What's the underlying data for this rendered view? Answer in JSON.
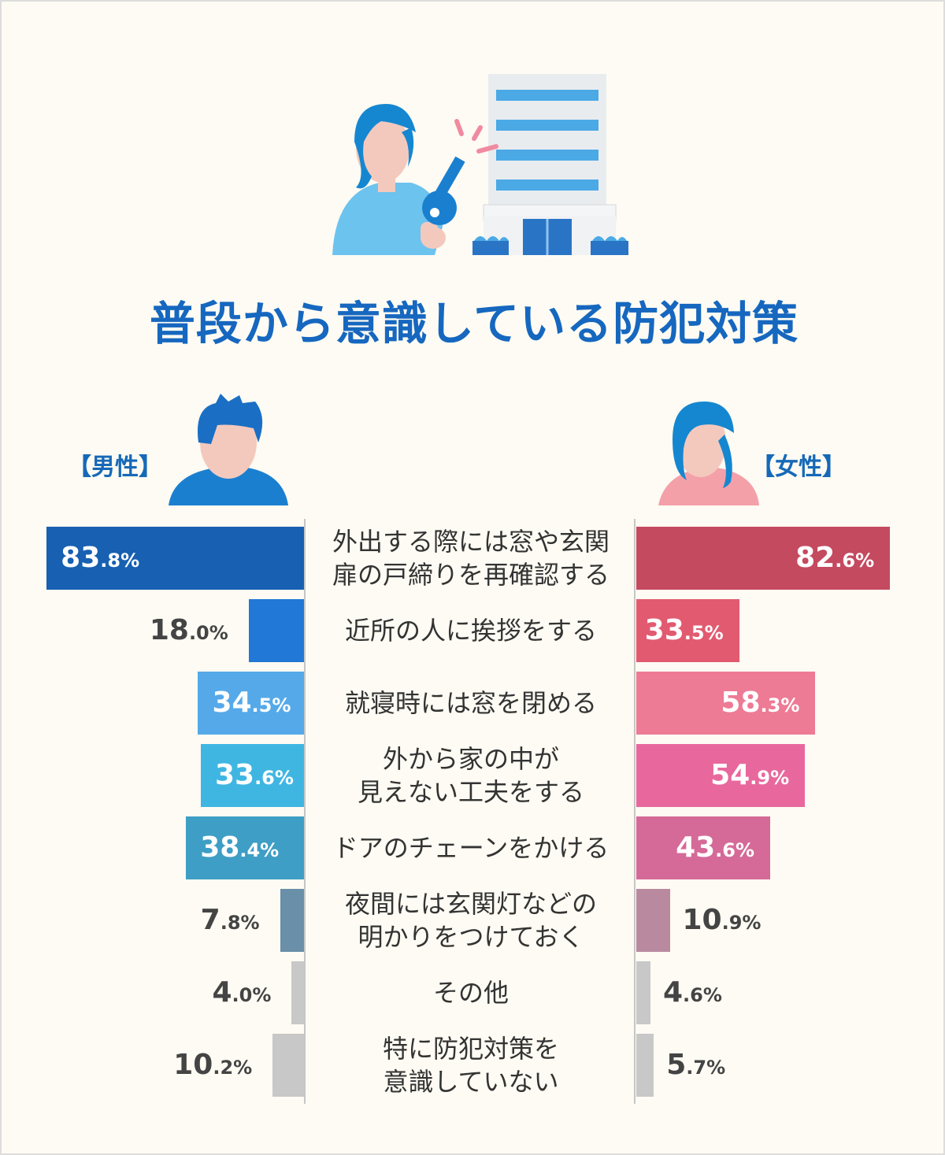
{
  "chart_data": {
    "type": "bar",
    "title": "普段から意識している防犯対策",
    "legend": [
      "【男性】",
      "【女性】"
    ],
    "categories": [
      "外出する際には窓や玄関\n扉の戸締りを再確認する",
      "近所の人に挨拶をする",
      "就寝時には窓を閉める",
      "外から家の中が\n見えない工夫をする",
      "ドアのチェーンをかける",
      "夜間には玄関灯などの\n明かりをつけておく",
      "その他",
      "特に防犯対策を\n意識していない"
    ],
    "series": [
      {
        "name": "【男性】",
        "values": [
          83.8,
          18.0,
          34.5,
          33.6,
          38.4,
          7.8,
          4.0,
          10.2
        ],
        "colors": [
          "#1760b2",
          "#2178d6",
          "#55a9e9",
          "#3fb6e2",
          "#3e9ec5",
          "#6a8fa8",
          "#c8c8c8",
          "#c8c8c8"
        ]
      },
      {
        "name": "【女性】",
        "values": [
          82.6,
          33.5,
          58.3,
          54.9,
          43.6,
          10.9,
          4.6,
          5.7
        ],
        "colors": [
          "#c44a60",
          "#e25a70",
          "#ed7b95",
          "#e8689d",
          "#d56a98",
          "#b98a9f",
          "#c8c8c8",
          "#c8c8c8"
        ]
      }
    ],
    "value_labels": {
      "male": [
        [
          "83",
          ".8%"
        ],
        [
          "18",
          ".0%"
        ],
        [
          "34",
          ".5%"
        ],
        [
          "33",
          ".6%"
        ],
        [
          "38",
          ".4%"
        ],
        [
          "7",
          ".8%"
        ],
        [
          "4",
          ".0%"
        ],
        [
          "10",
          ".2%"
        ]
      ],
      "female": [
        [
          "82",
          ".6%"
        ],
        [
          "33",
          ".5%"
        ],
        [
          "58",
          ".3%"
        ],
        [
          "54",
          ".9%"
        ],
        [
          "43",
          ".6%"
        ],
        [
          "10",
          ".9%"
        ],
        [
          "4",
          ".6%"
        ],
        [
          "5",
          ".7%"
        ]
      ]
    },
    "label_inside": {
      "male": [
        true,
        false,
        true,
        true,
        true,
        false,
        false,
        false
      ],
      "female": [
        true,
        true,
        true,
        true,
        true,
        false,
        false,
        false
      ]
    }
  },
  "illustration": {
    "key_icon": "key-icon",
    "building_icon": "building-icon",
    "woman_icon": "woman-with-key-icon",
    "male_avatar": "male-avatar-icon",
    "female_avatar": "female-avatar-icon"
  },
  "colors": {
    "background": "#fdfbf3",
    "title": "#1667bf",
    "text": "#333333"
  }
}
